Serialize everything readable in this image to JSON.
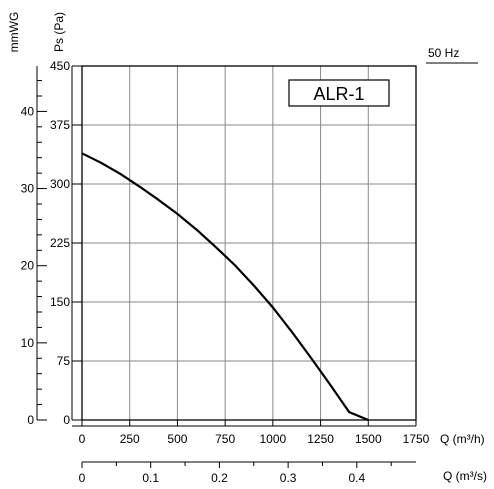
{
  "chart_data": {
    "type": "line",
    "model_label": "ALR-1",
    "frequency_label": "50 Hz",
    "left_axis_label": "mmWG",
    "ylabel": "Ps (Pa)",
    "xlabel": "Q (m³/h)",
    "x2label": "Q (m³/s)",
    "xlim": [
      0,
      1750
    ],
    "ylim": [
      0,
      450
    ],
    "x_ticks": [
      "0",
      "250",
      "500",
      "750",
      "1000",
      "1250",
      "1500",
      "1750"
    ],
    "y_ticks": [
      "0",
      "75",
      "150",
      "225",
      "300",
      "375",
      "450"
    ],
    "mmwg_ticks": [
      "0",
      "10",
      "20",
      "30",
      "40"
    ],
    "x2_ticks": [
      "0",
      "0.1",
      "0.2",
      "0.3",
      "0.4"
    ],
    "grid": true,
    "series": [
      {
        "x": [
          0,
          100,
          200,
          300,
          400,
          500,
          600,
          700,
          800,
          900,
          1000,
          1100,
          1200,
          1300,
          1400,
          1500
        ],
        "y": [
          339,
          327,
          313,
          297,
          280,
          262,
          242,
          220,
          197,
          171,
          143,
          112,
          79,
          45,
          10,
          0
        ]
      }
    ]
  }
}
